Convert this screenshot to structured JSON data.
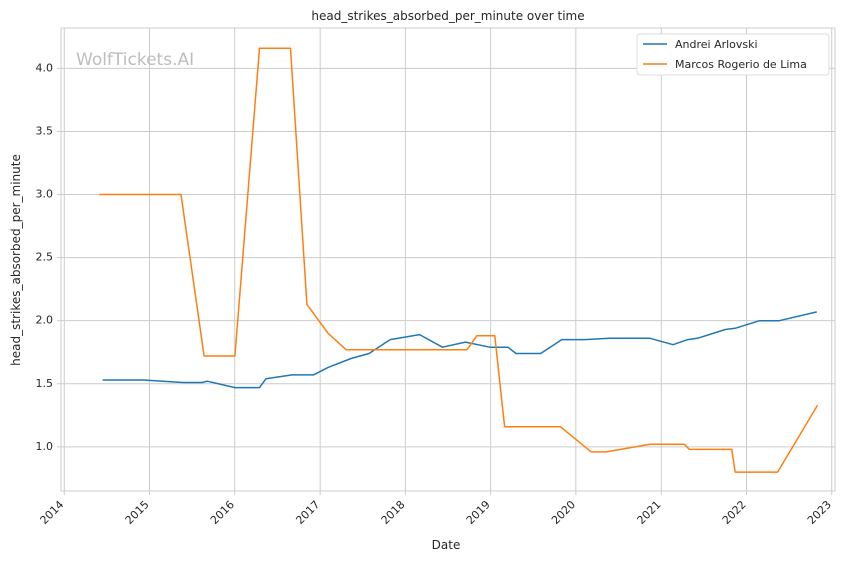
{
  "watermark": "WolfTickets.AI",
  "chart_data": {
    "type": "line",
    "title": "head_strikes_absorbed_per_minute over time",
    "xlabel": "Date",
    "ylabel": "head_strikes_absorbed_per_minute",
    "x_ticks": [
      "2014",
      "2015",
      "2016",
      "2017",
      "2018",
      "2019",
      "2020",
      "2021",
      "2022",
      "2023"
    ],
    "y_ticks": [
      "1.0",
      "1.5",
      "2.0",
      "2.5",
      "3.0",
      "3.5",
      "4.0"
    ],
    "xlim": [
      "2013-12-18",
      "2023-01-15"
    ],
    "ylim": [
      0.65,
      4.32
    ],
    "grid": true,
    "legend_position": "top-right",
    "series": [
      {
        "name": "Andrei Arlovski",
        "color": "#1f77b4",
        "points": [
          [
            "2014-06-14",
            1.53
          ],
          [
            "2014-12-06",
            1.53
          ],
          [
            "2015-05-23",
            1.51
          ],
          [
            "2015-08-15",
            1.51
          ],
          [
            "2015-09-05",
            1.52
          ],
          [
            "2016-01-02",
            1.47
          ],
          [
            "2016-04-16",
            1.47
          ],
          [
            "2016-05-14",
            1.54
          ],
          [
            "2016-09-03",
            1.57
          ],
          [
            "2016-12-03",
            1.57
          ],
          [
            "2017-02-04",
            1.63
          ],
          [
            "2017-05-13",
            1.7
          ],
          [
            "2017-07-29",
            1.74
          ],
          [
            "2017-10-28",
            1.85
          ],
          [
            "2018-03-03",
            1.89
          ],
          [
            "2018-06-09",
            1.79
          ],
          [
            "2018-09-15",
            1.83
          ],
          [
            "2018-12-29",
            1.79
          ],
          [
            "2019-03-16",
            1.79
          ],
          [
            "2019-04-20",
            1.74
          ],
          [
            "2019-08-03",
            1.74
          ],
          [
            "2019-11-02",
            1.85
          ],
          [
            "2020-02-08",
            1.85
          ],
          [
            "2020-05-23",
            1.86
          ],
          [
            "2020-11-14",
            1.86
          ],
          [
            "2021-02-20",
            1.81
          ],
          [
            "2021-04-24",
            1.85
          ],
          [
            "2021-06-05",
            1.86
          ],
          [
            "2021-10-02",
            1.93
          ],
          [
            "2021-11-13",
            1.94
          ],
          [
            "2022-02-26",
            2.0
          ],
          [
            "2022-05-21",
            2.0
          ],
          [
            "2022-10-29",
            2.07
          ]
        ]
      },
      {
        "name": "Marcos Rogerio de Lima",
        "color": "#ff7f0e",
        "points": [
          [
            "2014-05-31",
            3.0
          ],
          [
            "2015-05-16",
            3.0
          ],
          [
            "2015-08-23",
            1.72
          ],
          [
            "2016-01-02",
            1.72
          ],
          [
            "2016-04-16",
            4.16
          ],
          [
            "2016-08-27",
            4.16
          ],
          [
            "2016-11-05",
            2.13
          ],
          [
            "2017-02-04",
            1.9
          ],
          [
            "2017-04-22",
            1.77
          ],
          [
            "2018-09-22",
            1.77
          ],
          [
            "2018-11-03",
            1.88
          ],
          [
            "2019-01-19",
            1.88
          ],
          [
            "2019-03-02",
            1.16
          ],
          [
            "2019-10-27",
            1.16
          ],
          [
            "2020-03-07",
            0.96
          ],
          [
            "2020-05-09",
            0.96
          ],
          [
            "2020-11-14",
            1.02
          ],
          [
            "2021-04-10",
            1.02
          ],
          [
            "2021-05-01",
            0.98
          ],
          [
            "2021-10-30",
            0.98
          ],
          [
            "2021-11-13",
            0.8
          ],
          [
            "2022-05-14",
            0.8
          ],
          [
            "2022-11-01",
            1.33
          ]
        ]
      }
    ]
  }
}
